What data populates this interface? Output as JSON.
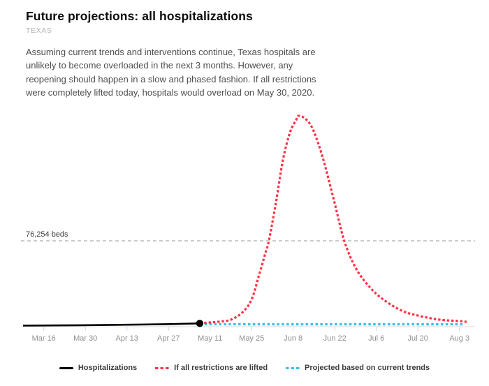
{
  "header": {
    "title": "Future projections: all hospitalizations",
    "location": "TEXAS",
    "description": "Assuming current trends and interventions continue, Texas hospitals are unlikely to become overloaded in the next 3 months. However, any reopening should happen in a slow and phased fashion. If all restrictions were completely lifted today, hospitals would overload on May 30, 2020."
  },
  "chart_data": {
    "type": "line",
    "title": "Future projections: all hospitalizations",
    "x_unit": "days (offset from chart start, ~Mar 9 2020)",
    "xlim": [
      0,
      152.25
    ],
    "ylim": [
      0,
      200000
    ],
    "grid": false,
    "legend_position": "bottom",
    "beds_line": {
      "label": "76,254 beds",
      "value": 76254,
      "color": "#9a9a9a"
    },
    "axis_color": "#e5e5ec",
    "tick_color": "#ccd3ea",
    "tick_label_color": "#8f8f8f",
    "x_ticks": [
      {
        "day": 7,
        "label": "Mar 16"
      },
      {
        "day": 21,
        "label": "Mar 30"
      },
      {
        "day": 35,
        "label": "Apr 13"
      },
      {
        "day": 49,
        "label": "Apr 27"
      },
      {
        "day": 63,
        "label": "May 11"
      },
      {
        "day": 77,
        "label": "May 25"
      },
      {
        "day": 91,
        "label": "Jun 8"
      },
      {
        "day": 105,
        "label": "Jun 22"
      },
      {
        "day": 119,
        "label": "Jul 6"
      },
      {
        "day": 133,
        "label": "Jul 20"
      },
      {
        "day": 147,
        "label": "Aug 3"
      }
    ],
    "series": [
      {
        "id": "hospitalizations",
        "name": "Hospitalizations",
        "color": "#000000",
        "style": "solid",
        "endpoint_dot": true,
        "points": [
          [
            0,
            900
          ],
          [
            10,
            1100
          ],
          [
            20,
            1300
          ],
          [
            30,
            1600
          ],
          [
            40,
            1900
          ],
          [
            50,
            2300
          ],
          [
            59.5,
            2900
          ]
        ]
      },
      {
        "id": "restrictions_lifted",
        "name": "If all restrictions are lifted",
        "color": "#ff3348",
        "style": "dashed",
        "endpoint_dot": false,
        "points": [
          [
            59.5,
            3100
          ],
          [
            63,
            3700
          ],
          [
            66.5,
            4600
          ],
          [
            70,
            6200
          ],
          [
            73.8,
            12400
          ],
          [
            76.9,
            23600
          ],
          [
            79.3,
            44000
          ],
          [
            81.6,
            65100
          ],
          [
            82.8,
            76254
          ],
          [
            85.2,
            110400
          ],
          [
            87.5,
            147500
          ],
          [
            89.9,
            172300
          ],
          [
            92.2,
            184700
          ],
          [
            92.9,
            187200
          ],
          [
            95.1,
            184700
          ],
          [
            97.6,
            175400
          ],
          [
            100.9,
            150600
          ],
          [
            104.9,
            110400
          ],
          [
            108.2,
            76254
          ],
          [
            112.2,
            51500
          ],
          [
            116.9,
            34700
          ],
          [
            121.6,
            23600
          ],
          [
            127.5,
            14300
          ],
          [
            132.9,
            9900
          ],
          [
            140.4,
            6200
          ],
          [
            146.8,
            5000
          ],
          [
            149.4,
            4300
          ]
        ]
      },
      {
        "id": "current_trends",
        "name": "Projected based on current trends",
        "color": "#3fbde8",
        "style": "dashed",
        "endpoint_dot": false,
        "points": [
          [
            59.5,
            2200
          ],
          [
            80,
            2100
          ],
          [
            100,
            2100
          ],
          [
            120,
            2100
          ],
          [
            148,
            2100
          ]
        ]
      }
    ]
  }
}
